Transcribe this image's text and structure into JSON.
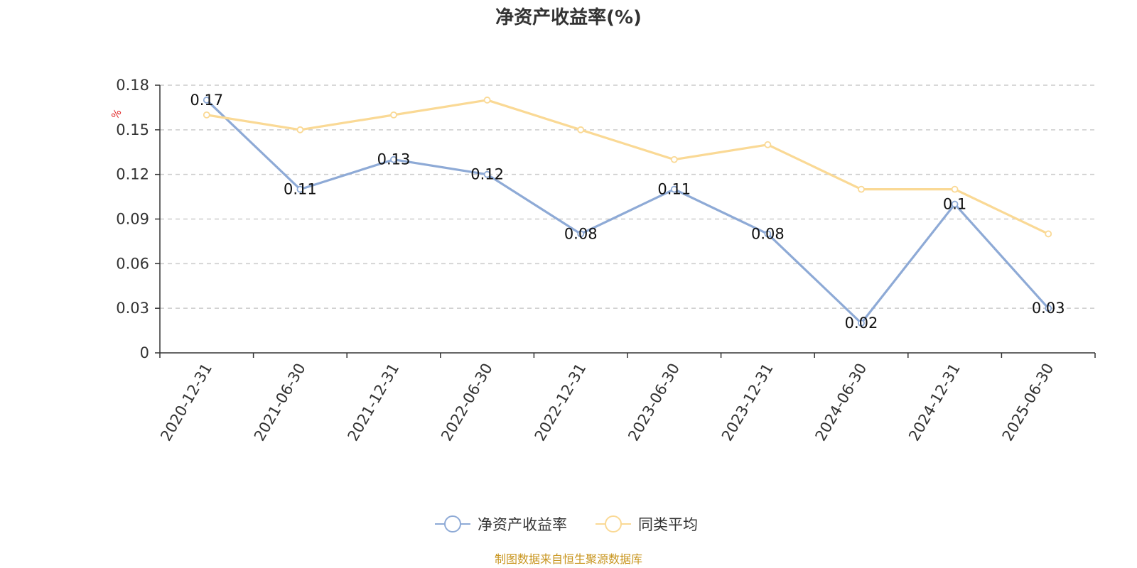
{
  "chart_data": {
    "type": "line",
    "title": "净资产收益率(%)",
    "ylabel": "%",
    "ylim": [
      0,
      0.18
    ],
    "yticks": [
      "0",
      "0.03",
      "0.06",
      "0.09",
      "0.12",
      "0.15",
      "0.18"
    ],
    "grid": true,
    "legend_position": "bottom",
    "categories": [
      "2020-12-31",
      "2021-06-30",
      "2021-12-31",
      "2022-06-30",
      "2022-12-31",
      "2023-06-30",
      "2023-12-31",
      "2024-06-30",
      "2024-12-31",
      "2025-06-30"
    ],
    "series": [
      {
        "name": "净资产收益率",
        "color": "#8eaad6",
        "values": [
          0.17,
          0.11,
          0.13,
          0.12,
          0.08,
          0.11,
          0.08,
          0.02,
          0.1,
          0.03
        ],
        "data_labels": [
          "0.17",
          "0.11",
          "0.13",
          "0.12",
          "0.08",
          "0.11",
          "0.08",
          "0.02",
          "0.1",
          "0.03"
        ]
      },
      {
        "name": "同类平均",
        "color": "#fad995",
        "values": [
          0.16,
          0.15,
          0.16,
          0.17,
          0.15,
          0.13,
          0.14,
          0.11,
          0.11,
          0.08
        ]
      }
    ],
    "source": "制图数据来自恒生聚源数据库"
  }
}
